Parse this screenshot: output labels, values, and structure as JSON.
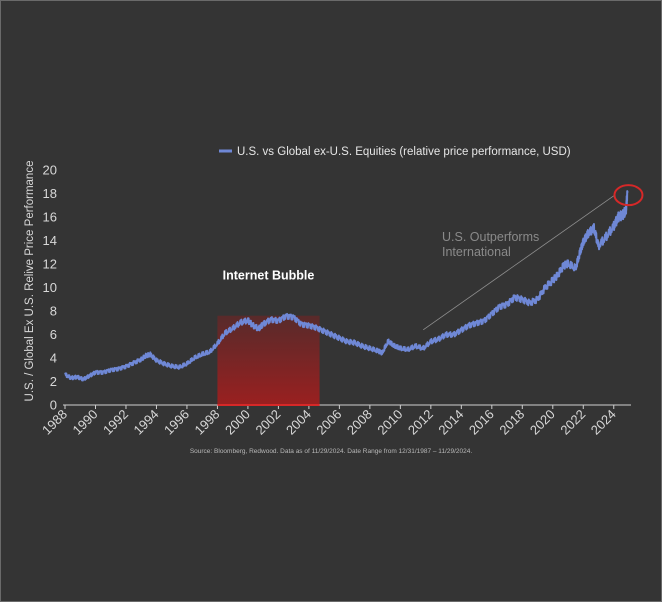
{
  "chart_data": {
    "type": "line",
    "title": "",
    "xlabel": "",
    "ylabel": "U.S. / Global Ex U.S. Relive Price Performance",
    "xlim": [
      1988,
      2025
    ],
    "ylim": [
      0,
      20
    ],
    "yticks": [
      0,
      2,
      4,
      6,
      8,
      10,
      12,
      14,
      16,
      18,
      20
    ],
    "xticks": [
      "1988",
      "1990",
      "1992",
      "1994",
      "1996",
      "1998",
      "2000",
      "2002",
      "2004",
      "2006",
      "2008",
      "2010",
      "2012",
      "2014",
      "2016",
      "2018",
      "2020",
      "2022",
      "2024"
    ],
    "grid": false,
    "legend_position": "top-center",
    "series": [
      {
        "name": "U.S. vs Global ex-U.S. Equities (relative price performance, USD)",
        "color": "#6f88d6",
        "x": [
          1988.0,
          1988.4,
          1988.8,
          1989.2,
          1989.6,
          1990.0,
          1990.5,
          1991.0,
          1991.5,
          1992.0,
          1992.5,
          1993.0,
          1993.3,
          1993.6,
          1994.0,
          1994.5,
          1995.0,
          1995.5,
          1996.0,
          1996.5,
          1997.0,
          1997.5,
          1998.0,
          1998.5,
          1999.0,
          1999.5,
          2000.0,
          2000.3,
          2000.7,
          2001.0,
          2001.5,
          2002.0,
          2002.5,
          2003.0,
          2003.5,
          2004.0,
          2004.5,
          2005.0,
          2005.5,
          2006.0,
          2006.5,
          2007.0,
          2007.5,
          2008.0,
          2008.5,
          2008.8,
          2009.2,
          2009.6,
          2010.0,
          2010.5,
          2011.0,
          2011.5,
          2012.0,
          2012.5,
          2013.0,
          2013.5,
          2014.0,
          2014.5,
          2015.0,
          2015.5,
          2016.0,
          2016.5,
          2017.0,
          2017.5,
          2018.0,
          2018.5,
          2019.0,
          2019.5,
          2020.0,
          2020.3,
          2020.7,
          2021.0,
          2021.5,
          2021.8,
          2022.0,
          2022.3,
          2022.7,
          2023.0,
          2023.5,
          2024.0,
          2024.3,
          2024.6,
          2024.8,
          2024.9
        ],
        "y": [
          2.6,
          2.3,
          2.4,
          2.2,
          2.5,
          2.8,
          2.8,
          3.0,
          3.1,
          3.3,
          3.6,
          3.9,
          4.2,
          4.3,
          3.8,
          3.5,
          3.3,
          3.2,
          3.5,
          4.0,
          4.3,
          4.5,
          5.2,
          6.1,
          6.5,
          7.0,
          7.2,
          6.8,
          6.5,
          6.9,
          7.3,
          7.2,
          7.6,
          7.5,
          6.9,
          6.8,
          6.6,
          6.3,
          6.0,
          5.7,
          5.4,
          5.3,
          5.0,
          4.8,
          4.6,
          4.4,
          5.4,
          5.0,
          4.8,
          4.7,
          5.0,
          4.8,
          5.4,
          5.6,
          6.0,
          6.0,
          6.4,
          6.8,
          7.0,
          7.2,
          7.8,
          8.4,
          8.6,
          9.2,
          9.0,
          8.7,
          9.0,
          10.0,
          10.6,
          11.0,
          11.8,
          12.0,
          11.6,
          13.0,
          13.8,
          14.5,
          15.0,
          13.5,
          14.3,
          15.2,
          16.0,
          16.2,
          16.6,
          18.2
        ]
      }
    ],
    "annotations": {
      "bubble_label": "Internet Bubble",
      "bubble_range": [
        1998.0,
        2004.7
      ],
      "outperform_line1": "U.S. Outperforms",
      "outperform_line2": "International",
      "source": "Source: Bloomberg, Redwood. Data as of 11/29/2024. Date Range from 12/31/1987 – 11/29/2024."
    },
    "colors": {
      "background": "#343434",
      "line": "#6f88d6",
      "bubble_fill_top": "#7a1e1e",
      "bubble_fill_bottom": "#a02020",
      "highlight_circle": "#d62828",
      "trend_line": "#8f8f8f"
    }
  }
}
